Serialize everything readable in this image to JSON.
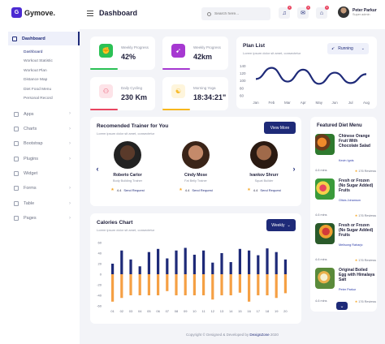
{
  "brand": {
    "logo": "G",
    "name": "Gymove."
  },
  "sidebar": {
    "dashboard": "Dashboard",
    "sub": [
      "Dashboard",
      "Workout Statistic",
      "Workout Plan",
      "Distance Map",
      "Diet Food Menu",
      "Personal Record"
    ],
    "items": [
      "Apps",
      "Charts",
      "Bootstrap",
      "Plugins",
      "Widget",
      "Forms",
      "Table",
      "Pages"
    ]
  },
  "header": {
    "title": "Dashboard",
    "search_placeholder": "Search here...",
    "notif_count": "3",
    "user_name": "Peter Parkur",
    "user_role": "Super admin"
  },
  "stats": [
    {
      "label": "Weekly Progress",
      "value": "42%",
      "color": "#2bc155"
    },
    {
      "label": "Weekly Progress",
      "value": "42km",
      "color": "#a638d1"
    },
    {
      "label": "Daily Cycling",
      "value": "230 Km",
      "color": "#e94560"
    },
    {
      "label": "Morning Yoga",
      "value": "18:34:21\"",
      "color": "#f7b71d"
    }
  ],
  "plan": {
    "title": "Plan List",
    "subtitle": "Lorem ipsum dolor sit amet, consectetur",
    "dropdown": "Running"
  },
  "plan_chart": {
    "type": "line",
    "categories": [
      "Jan",
      "Feb",
      "Mar",
      "Apr",
      "May",
      "Jun",
      "Jul",
      "Aug"
    ],
    "values": [
      105,
      135,
      98,
      130,
      92,
      122,
      94,
      118
    ],
    "yticks": [
      "140",
      "120",
      "100",
      "80",
      "60"
    ],
    "ylim": [
      60,
      145
    ],
    "color": "#1e2a78"
  },
  "trainers": {
    "title": "Recomended Trainer for You",
    "subtitle": "Lorem ipsum dolor sit amet, consectetur",
    "button": "View More",
    "list": [
      {
        "name": "Roberto Carlor",
        "role": "Body Building Trainer",
        "rating": "4.4",
        "action": "Send Request"
      },
      {
        "name": "Cindy Mose",
        "role": "Fat Belly Trainer",
        "rating": "4.4",
        "action": "Send Request"
      },
      {
        "name": "Ivankov Shrurr",
        "role": "Squat Builder",
        "rating": "4.4",
        "action": "Send Request"
      }
    ]
  },
  "calories": {
    "title": "Calories Chart",
    "subtitle": "Lorem ipsum dolor sit amet, consectetur",
    "dropdown": "Weekly"
  },
  "calories_chart": {
    "type": "bar",
    "categories": [
      "01",
      "02",
      "03",
      "04",
      "05",
      "06",
      "07",
      "08",
      "09",
      "10",
      "11",
      "12",
      "13",
      "14",
      "15",
      "16",
      "17",
      "18",
      "19",
      "20"
    ],
    "series": [
      {
        "values": [
          20,
          45,
          28,
          15,
          42,
          48,
          30,
          45,
          50,
          37,
          45,
          22,
          40,
          23,
          48,
          45,
          36,
          49,
          42,
          28
        ],
        "color": "#1e2a78"
      },
      {
        "values": [
          -52,
          -45,
          -40,
          -40,
          -40,
          -40,
          -32,
          -40,
          -40,
          -40,
          -40,
          -48,
          -40,
          -40,
          -35,
          -52,
          -40,
          -40,
          -45,
          -36
        ],
        "color": "#f5a044"
      }
    ],
    "yticks": [
      "60",
      "40",
      "20",
      "0",
      "-20",
      "-40",
      "-60"
    ],
    "ylim": [
      -60,
      60
    ]
  },
  "diet": {
    "title": "Featured Diet Menu",
    "items": [
      {
        "name": "Chinese Orange Fruit With Chocolate Salad",
        "author": "Kevin Ignis",
        "time": "4-6 mins",
        "reviews": "176 Reviews"
      },
      {
        "name": "Fresh or Frozen (No Sugar Added) Fruits",
        "author": "Olivia Johanson",
        "time": "4-6 mins",
        "reviews": "176 Reviews"
      },
      {
        "name": "Fresh or Frozen (No Sugar Added) Fruits",
        "author": "Melisong Raharjo",
        "time": "4-6 mins",
        "reviews": "176 Reviews"
      },
      {
        "name": "Original Boiled Egg with Himalaya Salt",
        "author": "Peter Parkur",
        "time": "4-6 mins",
        "reviews": "176 Reviews"
      }
    ]
  },
  "footer": {
    "text": "Copyright © Designed & Developed by ",
    "link": "DexignZone",
    "year": " 2020"
  }
}
